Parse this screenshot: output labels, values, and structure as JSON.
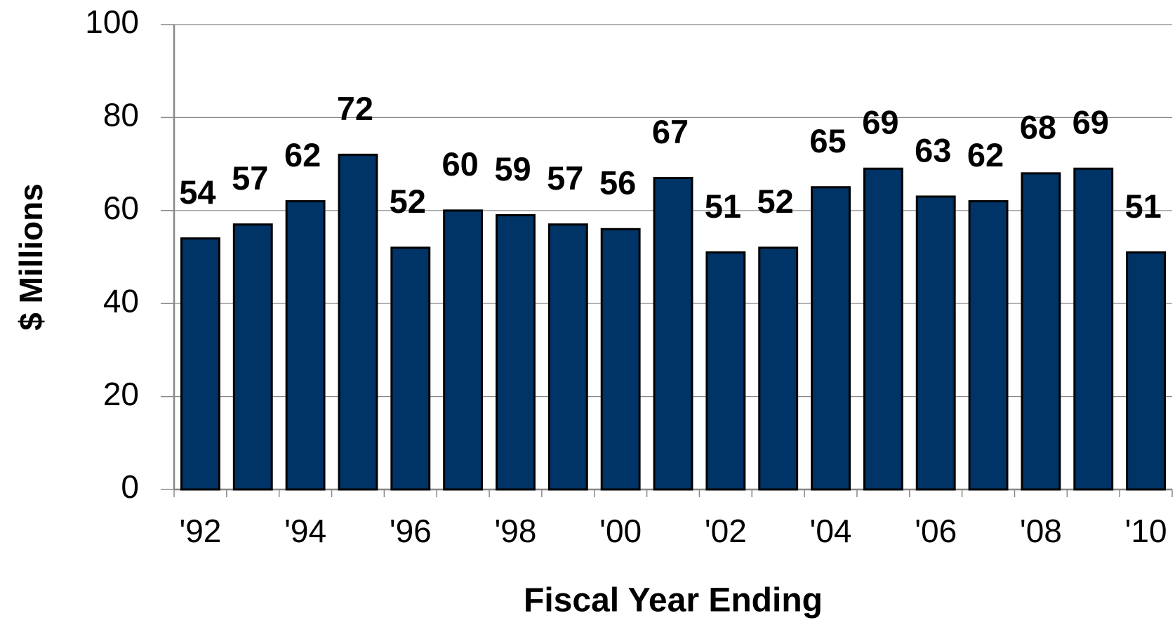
{
  "chart_data": {
    "type": "bar",
    "x_label": "Fiscal Year Ending",
    "y_label": "$ Millions",
    "categories": [
      "'92",
      null,
      "'94",
      null,
      "'96",
      null,
      "'98",
      null,
      "'00",
      null,
      "'02",
      null,
      "'04",
      null,
      "'06",
      null,
      "'08",
      null,
      "'10"
    ],
    "values": [
      54,
      57,
      62,
      72,
      52,
      60,
      59,
      57,
      56,
      67,
      51,
      52,
      65,
      69,
      63,
      62,
      68,
      69,
      51
    ],
    "color": "#003366",
    "ylim": [
      0,
      100
    ],
    "yticks": [
      0,
      20,
      40,
      60,
      80,
      100
    ],
    "grid": true
  }
}
